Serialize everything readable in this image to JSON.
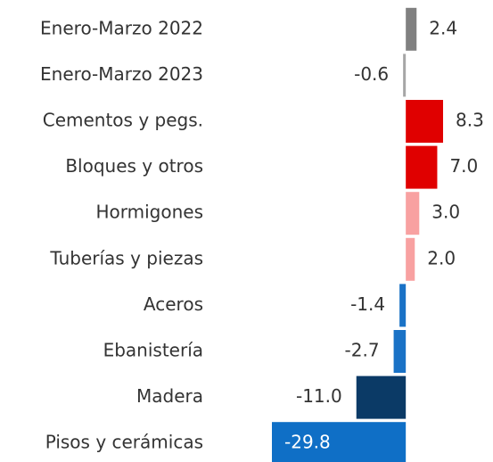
{
  "chart_data": {
    "type": "bar",
    "orientation": "horizontal",
    "categories": [
      "Enero-Marzo 2022",
      "Enero-Marzo 2023",
      "Cementos y pegs.",
      "Bloques y otros",
      "Hormigones",
      "Tuberías y piezas",
      "Aceros",
      "Ebanistería",
      "Madera",
      "Pisos y cerámicas"
    ],
    "values": [
      2.4,
      -0.6,
      8.3,
      7.0,
      3.0,
      2.0,
      -1.4,
      -2.7,
      -11.0,
      -29.8
    ],
    "value_labels": [
      "2.4",
      "-0.6",
      "8.3",
      "7.0",
      "3.0",
      "2.0",
      "-1.4",
      "-2.7",
      "-11.0",
      "-29.8"
    ],
    "colors": [
      "#808080",
      "#a6a6a6",
      "#e00000",
      "#e00000",
      "#f8a1a1",
      "#f8a1a1",
      "#1a72c6",
      "#1a72c6",
      "#0b3a66",
      "#0f6fc6"
    ]
  }
}
